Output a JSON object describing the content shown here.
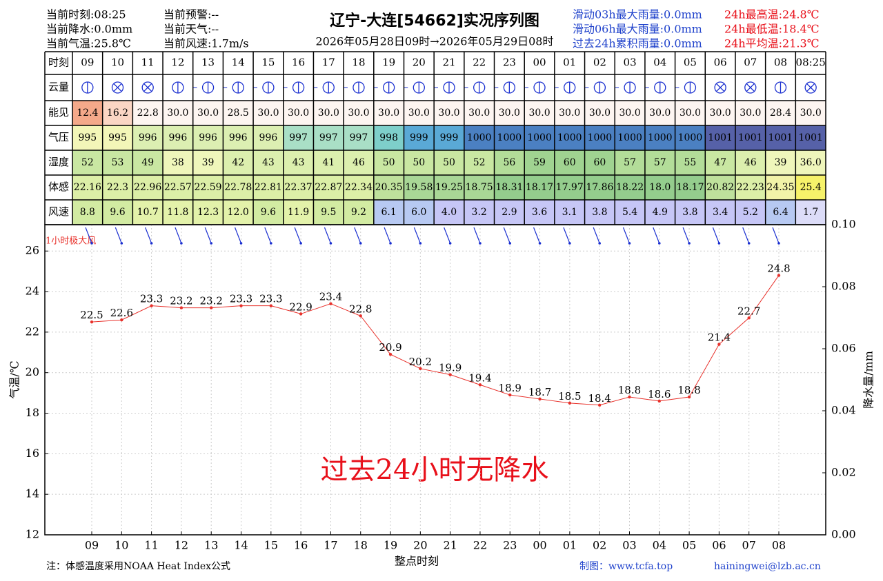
{
  "header": {
    "left": [
      "当前时刻:08:25",
      "当前降水:0.0mm",
      "当前气温:25.8℃"
    ],
    "middle": [
      "当前预警:--",
      "当前天气:--",
      "当前风速:1.7m/s"
    ],
    "title": "辽宁-大连[54662]实况序列图",
    "subtitle": "2026年05月28日09时→2026年05月29日08时",
    "rain": [
      "滑动03h最大雨量:0.0mm",
      "滑动06h最大雨量:0.0mm",
      "过去24h累积雨量:0.0mm"
    ],
    "temp": [
      "24h最高温:24.8℃",
      "24h最低温:18.4℃",
      "24h平均温:21.3℃"
    ]
  },
  "table": {
    "header_label": "时刻",
    "times": [
      "09",
      "10",
      "11",
      "12",
      "13",
      "14",
      "15",
      "16",
      "17",
      "18",
      "19",
      "20",
      "21",
      "22",
      "23",
      "00",
      "01",
      "02",
      "03",
      "04",
      "05",
      "06",
      "07",
      "08",
      "08:25"
    ],
    "cloud_label": "云量",
    "rows": [
      {
        "label": "能见",
        "cells": [
          "12.4",
          "16.2",
          "22.8",
          "30.0",
          "30.0",
          "28.5",
          "30.0",
          "30.0",
          "30.0",
          "30.0",
          "30.0",
          "30.0",
          "30.0",
          "30.0",
          "30.0",
          "30.0",
          "30.0",
          "30.0",
          "30.0",
          "30.0",
          "30.0",
          "30.0",
          "30.0",
          "28.4",
          "30.0"
        ]
      },
      {
        "label": "气压",
        "cells": [
          "995",
          "995",
          "996",
          "996",
          "996",
          "996",
          "996",
          "997",
          "997",
          "997",
          "998",
          "999",
          "999",
          "1000",
          "1000",
          "1000",
          "1000",
          "1000",
          "1000",
          "1000",
          "1000",
          "1001",
          "1001",
          "1001",
          "1001"
        ]
      },
      {
        "label": "湿度",
        "cells": [
          "52",
          "53",
          "49",
          "38",
          "39",
          "42",
          "43",
          "43",
          "41",
          "46",
          "50",
          "50",
          "50",
          "52",
          "56",
          "59",
          "60",
          "60",
          "57",
          "57",
          "55",
          "47",
          "46",
          "39",
          "36.0"
        ]
      },
      {
        "label": "体感",
        "cells": [
          "22.16",
          "22.3",
          "22.96",
          "22.57",
          "22.59",
          "22.78",
          "22.81",
          "22.37",
          "22.87",
          "22.34",
          "20.35",
          "19.58",
          "19.25",
          "18.75",
          "18.31",
          "18.17",
          "17.97",
          "17.86",
          "18.22",
          "18.0",
          "18.17",
          "20.82",
          "22.23",
          "24.35",
          "25.4"
        ]
      },
      {
        "label": "风速",
        "cells": [
          "8.8",
          "9.6",
          "10.7",
          "11.8",
          "12.3",
          "12.0",
          "9.6",
          "11.9",
          "9.5",
          "9.2",
          "6.1",
          "6.0",
          "4.0",
          "3.2",
          "2.9",
          "3.6",
          "3.1",
          "3.8",
          "5.4",
          "4.9",
          "3.8",
          "3.4",
          "5.2",
          "6.4",
          "1.7"
        ]
      }
    ]
  },
  "chart_data": {
    "type": "line",
    "categories": [
      "09",
      "10",
      "11",
      "12",
      "13",
      "14",
      "15",
      "16",
      "17",
      "18",
      "19",
      "20",
      "21",
      "22",
      "23",
      "00",
      "01",
      "02",
      "03",
      "04",
      "05",
      "06",
      "07",
      "08"
    ],
    "values": [
      22.5,
      22.6,
      23.3,
      23.2,
      23.2,
      23.3,
      23.3,
      22.9,
      23.4,
      22.8,
      20.9,
      20.2,
      19.9,
      19.4,
      18.9,
      18.7,
      18.5,
      18.4,
      18.8,
      18.6,
      18.8,
      21.4,
      22.7,
      24.8
    ],
    "color": "#e8302a",
    "ylim": [
      12,
      27.3
    ],
    "yticks": [
      12,
      14,
      16,
      18,
      20,
      22,
      24,
      26
    ],
    "y2lim": [
      0,
      0.1
    ],
    "y2ticks": [
      {
        "value": 0,
        "label": "0.00"
      },
      {
        "value": 0.02,
        "label": "0.02"
      },
      {
        "value": 0.04,
        "label": "0.04"
      },
      {
        "value": 0.06,
        "label": "0.06"
      },
      {
        "value": 0.08,
        "label": "0.08"
      },
      {
        "value": 0.1,
        "label": "0.10"
      }
    ],
    "grid": true,
    "y_label": "气温/℃",
    "y2_label": "降水量/mm",
    "x_label": "整点时刻",
    "wind_label": "1小时极大风",
    "annotation": "过去24小时无降水"
  },
  "footer": {
    "note": "注：体感温度采用NOAA Heat Index公式",
    "credit": "制图：www.tcfa.top",
    "email": "hainingwei@lzb.ac.cn"
  }
}
